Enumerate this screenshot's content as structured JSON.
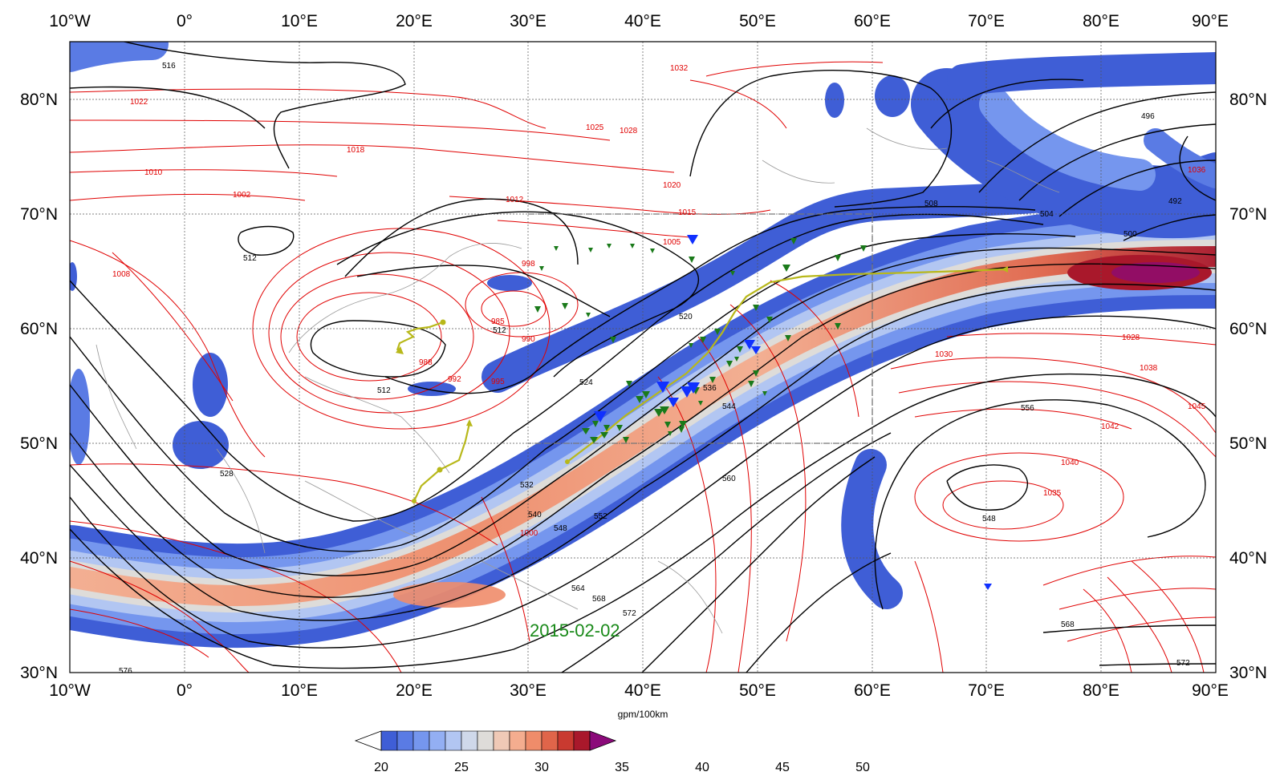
{
  "map": {
    "date_label": "2015-02-02",
    "longitude_labels": [
      "10°W",
      "0°",
      "10°E",
      "20°E",
      "30°E",
      "40°E",
      "50°E",
      "60°E",
      "70°E",
      "80°E",
      "90°E"
    ],
    "latitude_labels": [
      "80°N",
      "70°N",
      "60°N",
      "50°N",
      "40°N",
      "30°N"
    ],
    "extent": {
      "lon_min": -10,
      "lon_max": 90,
      "lat_min": 30,
      "lat_max": 85
    },
    "gridlines": true,
    "sea_level_pressure_labels": [
      "1032",
      "1022",
      "1025",
      "1028",
      "1018",
      "1010",
      "1002",
      "1012",
      "1015",
      "1020",
      "1005",
      "998",
      "985",
      "990",
      "988",
      "992",
      "995",
      "1008",
      "1035",
      "1038",
      "1042",
      "1040",
      "1045",
      "1030",
      "1000",
      "1028",
      "1036"
    ],
    "geopotential_height_labels": [
      "516",
      "512",
      "512",
      "512",
      "508",
      "504",
      "500",
      "496",
      "492",
      "520",
      "524",
      "528",
      "532",
      "536",
      "540",
      "544",
      "548",
      "552",
      "556",
      "560",
      "564",
      "568",
      "572",
      "576",
      "548",
      "568",
      "572"
    ],
    "colors": {
      "pressure_contours": "#e00000",
      "height_contours": "#000000",
      "track": "#b8b81a",
      "green_markers": "#1a7a1a",
      "blue_markers": "#1030ff",
      "date_label": "#1a8a1a"
    }
  },
  "colorbar": {
    "unit": "gpm/100km",
    "tick_labels": [
      "20",
      "25",
      "30",
      "35",
      "40",
      "45",
      "50"
    ],
    "levels": [
      20,
      22.5,
      25,
      27.5,
      30,
      32.5,
      35,
      37.5,
      40,
      42.5,
      45,
      47.5,
      50,
      52.5
    ],
    "colors": [
      "#3f5ed6",
      "#5a7be4",
      "#7596ee",
      "#93aff3",
      "#b2c6f2",
      "#cfd8ea",
      "#dedcd9",
      "#efc9b6",
      "#f4ad8f",
      "#ef8c6a",
      "#e0654a",
      "#c93a30",
      "#a9182b"
    ],
    "under_color": "#ffffff",
    "over_color": "#8b0a7a"
  }
}
